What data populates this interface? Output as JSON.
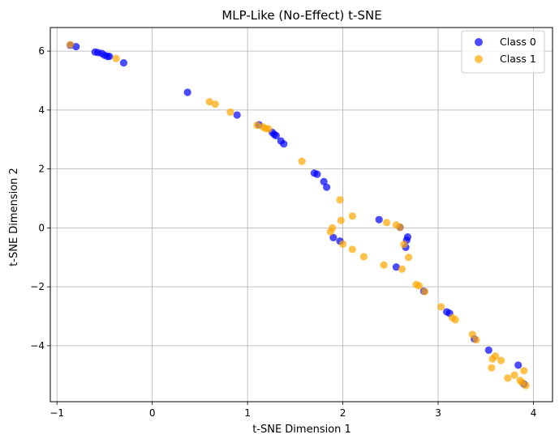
{
  "chart_data": {
    "type": "scatter",
    "title": "MLP-Like (No-Effect) t-SNE",
    "xlabel": "t-SNE Dimension 1",
    "ylabel": "t-SNE Dimension 2",
    "xlim": [
      -1.07,
      4.2
    ],
    "ylim": [
      -5.9,
      6.8
    ],
    "xticks": [
      -1,
      0,
      1,
      2,
      3,
      4
    ],
    "yticks": [
      -4,
      -2,
      0,
      2,
      4,
      6
    ],
    "xtick_labels": [
      "−1",
      "0",
      "1",
      "2",
      "3",
      "4"
    ],
    "ytick_labels": [
      "−4",
      "−2",
      "0",
      "2",
      "4",
      "6"
    ],
    "grid": true,
    "legend_position": "top-right",
    "series": [
      {
        "name": "Class 0",
        "color": "#0000ff",
        "points": [
          [
            -0.86,
            6.2
          ],
          [
            -0.8,
            6.15
          ],
          [
            -0.6,
            5.97
          ],
          [
            -0.57,
            5.95
          ],
          [
            -0.53,
            5.92
          ],
          [
            -0.5,
            5.86
          ],
          [
            -0.47,
            5.82
          ],
          [
            -0.45,
            5.82
          ],
          [
            -0.3,
            5.6
          ],
          [
            0.37,
            4.6
          ],
          [
            0.89,
            3.83
          ],
          [
            1.12,
            3.5
          ],
          [
            1.26,
            3.24
          ],
          [
            1.28,
            3.17
          ],
          [
            1.3,
            3.13
          ],
          [
            1.35,
            2.95
          ],
          [
            1.38,
            2.85
          ],
          [
            1.7,
            1.86
          ],
          [
            1.73,
            1.82
          ],
          [
            1.8,
            1.57
          ],
          [
            1.83,
            1.38
          ],
          [
            1.9,
            -0.33
          ],
          [
            1.97,
            -0.45
          ],
          [
            2.38,
            0.28
          ],
          [
            2.56,
            -1.33
          ],
          [
            2.6,
            0.02
          ],
          [
            2.66,
            -0.66
          ],
          [
            2.67,
            -0.42
          ],
          [
            2.68,
            -0.31
          ],
          [
            2.85,
            -2.15
          ],
          [
            3.09,
            -2.85
          ],
          [
            3.12,
            -2.9
          ],
          [
            3.38,
            -3.77
          ],
          [
            3.53,
            -4.15
          ],
          [
            3.84,
            -4.66
          ],
          [
            3.9,
            -5.3
          ]
        ]
      },
      {
        "name": "Class 1",
        "color": "#ffa500",
        "points": [
          [
            -0.86,
            6.22
          ],
          [
            -0.38,
            5.75
          ],
          [
            0.6,
            4.28
          ],
          [
            0.66,
            4.2
          ],
          [
            0.82,
            3.93
          ],
          [
            1.1,
            3.48
          ],
          [
            1.16,
            3.43
          ],
          [
            1.19,
            3.37
          ],
          [
            1.22,
            3.36
          ],
          [
            1.57,
            2.26
          ],
          [
            1.97,
            0.95
          ],
          [
            1.98,
            0.25
          ],
          [
            2.1,
            0.4
          ],
          [
            1.87,
            -0.13
          ],
          [
            1.89,
            0.0
          ],
          [
            2.0,
            -0.55
          ],
          [
            2.1,
            -0.73
          ],
          [
            2.22,
            -0.98
          ],
          [
            2.43,
            -1.26
          ],
          [
            2.46,
            0.18
          ],
          [
            2.56,
            0.1
          ],
          [
            2.6,
            0.02
          ],
          [
            2.62,
            -1.4
          ],
          [
            2.64,
            -0.56
          ],
          [
            2.69,
            -1.0
          ],
          [
            2.77,
            -1.92
          ],
          [
            2.8,
            -1.97
          ],
          [
            2.86,
            -2.16
          ],
          [
            3.03,
            -2.68
          ],
          [
            3.15,
            -3.05
          ],
          [
            3.18,
            -3.12
          ],
          [
            3.36,
            -3.62
          ],
          [
            3.4,
            -3.8
          ],
          [
            3.56,
            -4.75
          ],
          [
            3.57,
            -4.45
          ],
          [
            3.6,
            -4.35
          ],
          [
            3.66,
            -4.5
          ],
          [
            3.73,
            -5.1
          ],
          [
            3.8,
            -5.0
          ],
          [
            3.86,
            -5.18
          ],
          [
            3.88,
            -5.25
          ],
          [
            3.9,
            -4.85
          ],
          [
            3.92,
            -5.35
          ]
        ]
      }
    ]
  }
}
